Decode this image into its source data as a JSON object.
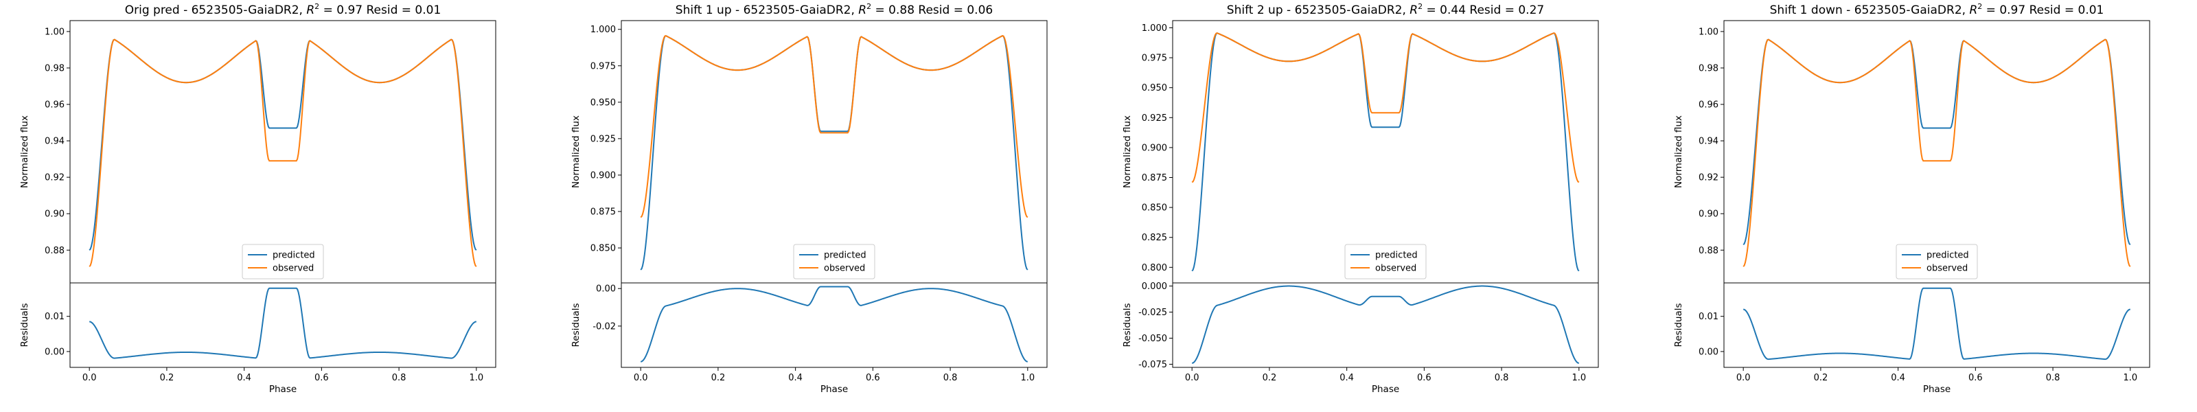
{
  "chart_data": [
    {
      "type": "line",
      "title": "Orig pred - 6523505-GaiaDR2, R² = 0.97 Resid = 0.01",
      "title_prefix": "Orig pred - 6523505-GaiaDR2, ",
      "r2_text": " = 0.97 Resid = 0.01",
      "xlabel": "Phase",
      "ylabel_top": "Normalized flux",
      "ylabel_bottom": "Residuals",
      "xlim": [
        -0.05,
        1.05
      ],
      "xticks": [
        "0.0",
        "0.2",
        "0.4",
        "0.6",
        "0.8",
        "1.0"
      ],
      "ylim_top": [
        0.862,
        1.006
      ],
      "yticks_top": [
        "0.88",
        "0.90",
        "0.92",
        "0.94",
        "0.96",
        "0.98",
        "1.00"
      ],
      "ylim_bottom": [
        -0.0045,
        0.0195
      ],
      "yticks_bottom": [
        "0.00",
        "0.01"
      ],
      "legend": "lower center",
      "series": [
        {
          "name": "predicted",
          "color": "#1f77b4",
          "min": 0.88,
          "eclipse_depth": 0.947
        },
        {
          "name": "observed",
          "color": "#ff7f0e",
          "min": 0.871,
          "eclipse_depth": 0.929
        }
      ],
      "residuals": {
        "color": "#1f77b4",
        "edge": 0.0085,
        "baseline": -0.0022,
        "peak": 0.018
      }
    },
    {
      "type": "line",
      "title": "Shift 1 up - 6523505-GaiaDR2, R² = 0.88 Resid = 0.06",
      "title_prefix": "Shift 1 up - 6523505-GaiaDR2, ",
      "r2_text": " = 0.88 Resid = 0.06",
      "xlabel": "Phase",
      "ylabel_top": "Normalized flux",
      "ylabel_bottom": "Residuals",
      "xlim": [
        -0.05,
        1.05
      ],
      "xticks": [
        "0.0",
        "0.2",
        "0.4",
        "0.6",
        "0.8",
        "1.0"
      ],
      "ylim_top": [
        0.826,
        1.006
      ],
      "yticks_top": [
        "0.850",
        "0.875",
        "0.900",
        "0.925",
        "0.950",
        "0.975",
        "1.000"
      ],
      "ylim_bottom": [
        -0.042,
        0.003
      ],
      "yticks_bottom": [
        "-0.02",
        "0.00"
      ],
      "legend": "lower center",
      "series": [
        {
          "name": "predicted",
          "color": "#1f77b4",
          "min": 0.835,
          "eclipse_depth": 0.93
        },
        {
          "name": "observed",
          "color": "#ff7f0e",
          "min": 0.871,
          "eclipse_depth": 0.929
        }
      ],
      "residuals": {
        "color": "#1f77b4",
        "edge": -0.039,
        "baseline": -0.011,
        "peak": 0.001
      }
    },
    {
      "type": "line",
      "title": "Shift 2 up - 6523505-GaiaDR2, R² = 0.44 Resid = 0.27",
      "title_prefix": "Shift 2 up - 6523505-GaiaDR2, ",
      "r2_text": " = 0.44 Resid = 0.27",
      "xlabel": "Phase",
      "ylabel_top": "Normalized flux",
      "ylabel_bottom": "Residuals",
      "xlim": [
        -0.05,
        1.05
      ],
      "xticks": [
        "0.0",
        "0.2",
        "0.4",
        "0.6",
        "0.8",
        "1.0"
      ],
      "ylim_top": [
        0.787,
        1.006
      ],
      "yticks_top": [
        "0.800",
        "0.825",
        "0.850",
        "0.875",
        "0.900",
        "0.925",
        "0.950",
        "0.975",
        "1.000"
      ],
      "ylim_bottom": [
        -0.078,
        0.003
      ],
      "yticks_bottom": [
        "-0.075",
        "-0.050",
        "-0.025",
        "0.000"
      ],
      "legend": "lower center",
      "series": [
        {
          "name": "predicted",
          "color": "#1f77b4",
          "min": 0.797,
          "eclipse_depth": 0.917
        },
        {
          "name": "observed",
          "color": "#ff7f0e",
          "min": 0.871,
          "eclipse_depth": 0.929
        }
      ],
      "residuals": {
        "color": "#1f77b4",
        "edge": -0.074,
        "baseline": -0.022,
        "peak": -0.01
      }
    },
    {
      "type": "line",
      "title": "Shift 1 down - 6523505-GaiaDR2, R² = 0.97 Resid = 0.01",
      "title_prefix": "Shift 1 down - 6523505-GaiaDR2, ",
      "r2_text": " = 0.97 Resid = 0.01",
      "xlabel": "Phase",
      "ylabel_top": "Normalized flux",
      "ylabel_bottom": "Residuals",
      "xlim": [
        -0.05,
        1.05
      ],
      "xticks": [
        "0.0",
        "0.2",
        "0.4",
        "0.6",
        "0.8",
        "1.0"
      ],
      "ylim_top": [
        0.862,
        1.006
      ],
      "yticks_top": [
        "0.88",
        "0.90",
        "0.92",
        "0.94",
        "0.96",
        "0.98",
        "1.00"
      ],
      "ylim_bottom": [
        -0.0045,
        0.0195
      ],
      "yticks_bottom": [
        "0.00",
        "0.01"
      ],
      "legend": "lower center",
      "series": [
        {
          "name": "predicted",
          "color": "#1f77b4",
          "min": 0.883,
          "eclipse_depth": 0.947
        },
        {
          "name": "observed",
          "color": "#ff7f0e",
          "min": 0.871,
          "eclipse_depth": 0.929
        }
      ],
      "residuals": {
        "color": "#1f77b4",
        "edge": 0.012,
        "baseline": -0.0025,
        "peak": 0.018
      }
    }
  ]
}
